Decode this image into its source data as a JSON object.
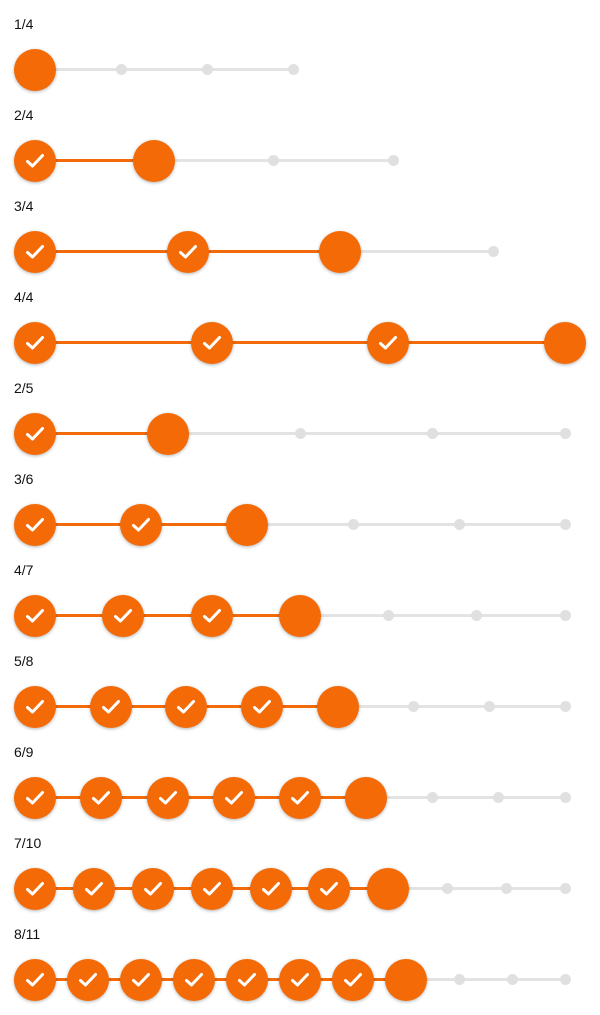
{
  "steppers": [
    {
      "label": "1/4",
      "current": 1,
      "total": 4
    },
    {
      "label": "2/4",
      "current": 2,
      "total": 4
    },
    {
      "label": "3/4",
      "current": 3,
      "total": 4
    },
    {
      "label": "4/4",
      "current": 4,
      "total": 4
    },
    {
      "label": "2/5",
      "current": 2,
      "total": 5
    },
    {
      "label": "3/6",
      "current": 3,
      "total": 6
    },
    {
      "label": "4/7",
      "current": 4,
      "total": 7
    },
    {
      "label": "5/8",
      "current": 5,
      "total": 8
    },
    {
      "label": "6/9",
      "current": 6,
      "total": 9
    },
    {
      "label": "7/10",
      "current": 7,
      "total": 10
    },
    {
      "label": "8/11",
      "current": 8,
      "total": 11
    }
  ],
  "icons": {
    "completed_step": "check-icon"
  },
  "colors": {
    "accent": "#f46a06",
    "track_inactive": "#e3e3e3",
    "dot_inactive": "#e0e0e0",
    "check": "#ffffff"
  }
}
